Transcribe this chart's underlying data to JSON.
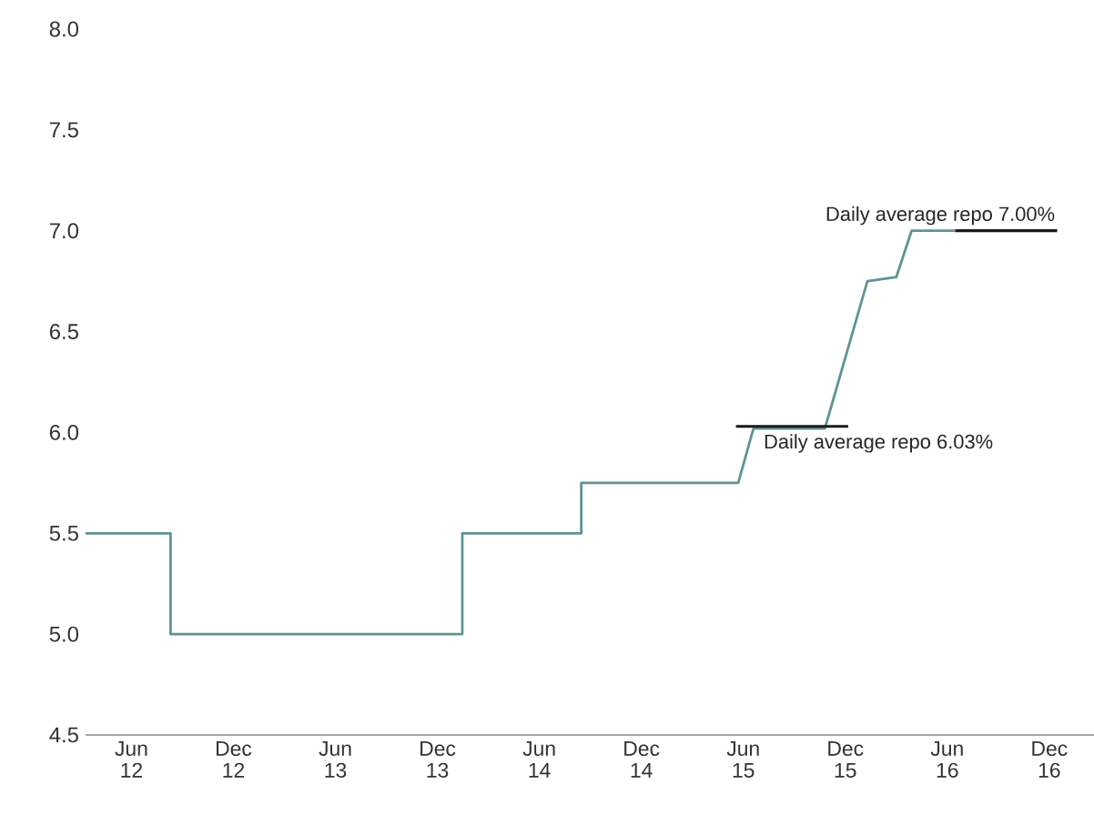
{
  "chart_data": {
    "type": "line",
    "xlim": [
      "2012-03-10",
      "2017-02-20"
    ],
    "xticks": [
      {
        "value": "2012-06",
        "label": "Jun 12"
      },
      {
        "value": "2012-12",
        "label": "Dec 12"
      },
      {
        "value": "2013-06",
        "label": "Jun 13"
      },
      {
        "value": "2013-12",
        "label": "Dec 13"
      },
      {
        "value": "2014-06",
        "label": "Jun 14"
      },
      {
        "value": "2014-12",
        "label": "Dec 14"
      },
      {
        "value": "2015-06",
        "label": "Jun 15"
      },
      {
        "value": "2015-12",
        "label": "Dec 15"
      },
      {
        "value": "2016-06",
        "label": "Jun 16"
      },
      {
        "value": "2016-12",
        "label": "Dec 16"
      }
    ],
    "ylim": [
      4.5,
      8.0
    ],
    "yticks": [
      4.5,
      {
        "value": 5.0,
        "label": "5.0"
      },
      5.5,
      {
        "value": 6.0,
        "label": "6.0"
      },
      6.5,
      {
        "value": 7.0,
        "label": "7.0"
      },
      7.5,
      {
        "value": 8.0,
        "label": "8.0"
      }
    ],
    "series": [
      {
        "color": "#5f9494",
        "x": [
          "2012-03-10",
          "2012-08-10",
          "2012-08-10",
          "2014-01-15",
          "2014-01-15",
          "2014-08-15",
          "2014-08-15",
          "2015-05-22",
          "2015-06-19",
          "2015-10-25",
          "2016-01-10",
          "2016-03-01",
          "2016-03-28",
          "2016-06-15"
        ],
        "values": [
          5.5,
          5.5,
          5.0,
          5.0,
          5.5,
          5.5,
          5.75,
          5.75,
          6.02,
          6.02,
          6.75,
          6.77,
          7.0,
          7.0
        ]
      },
      {
        "color": "#1a1a1a",
        "x": [
          "2015-05-18",
          "2015-12-06"
        ],
        "values": [
          6.03,
          6.03
        ]
      },
      {
        "color": "#1a1a1a",
        "x": [
          "2016-06-15",
          "2016-12-15"
        ],
        "values": [
          7.0,
          7.0
        ]
      }
    ],
    "annotations": [
      {
        "text": "Daily average repo 7.00%",
        "x": "2016-12-15",
        "y": 7.0
      },
      {
        "text": "Daily average repo 6.03%",
        "x": "2015-05-18",
        "y": 6.03
      }
    ]
  }
}
